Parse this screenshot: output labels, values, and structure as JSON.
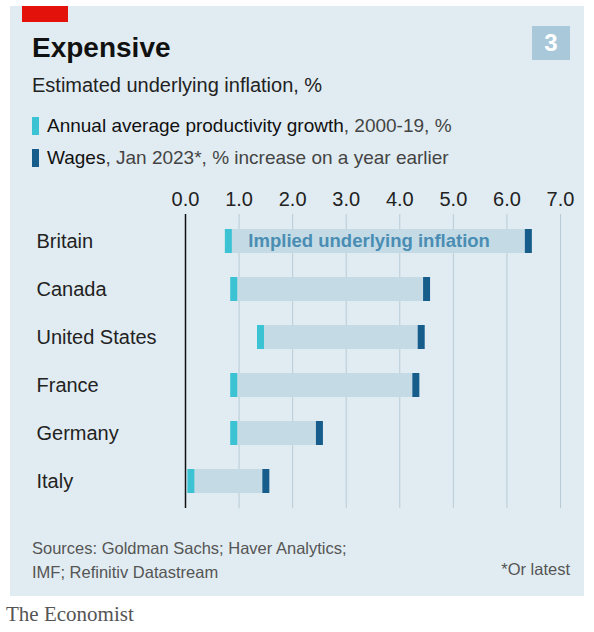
{
  "chart_data": {
    "type": "range",
    "orientation": "horizontal",
    "title": "Expensive",
    "subtitle": "Estimated underlying inflation, %",
    "figure_number": "3",
    "categories": [
      "Britain",
      "Canada",
      "United States",
      "France",
      "Germany",
      "Italy"
    ],
    "series": [
      {
        "name": "Annual average productivity growth, 2000-19, %",
        "color": "#3cc3d3",
        "values": [
          0.8,
          0.9,
          1.4,
          0.9,
          0.9,
          0.1
        ]
      },
      {
        "name": "Wages, Jan 2023*, % increase on a year earlier",
        "color": "#175d8c",
        "values": [
          6.4,
          4.5,
          4.4,
          4.3,
          2.5,
          1.5
        ]
      }
    ],
    "color": "#c4dbe6",
    "annotation": "Implied underlying inflation",
    "xlim": [
      0,
      7
    ],
    "xticks": [
      0,
      1,
      2,
      3,
      4,
      5,
      6,
      7
    ],
    "grid": true,
    "source": "Sources: Goldman Sachs; Haver Analytics; IMF; Refinitiv Datastream",
    "note": "*Or latest",
    "publisher": "The Economist"
  }
}
